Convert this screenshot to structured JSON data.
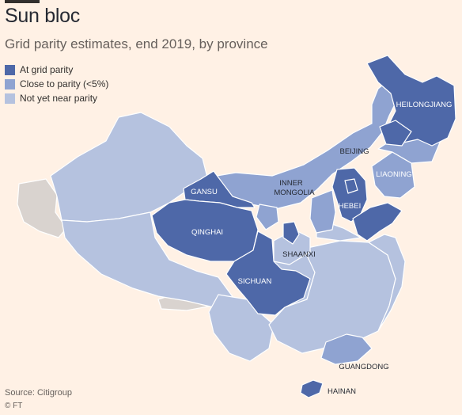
{
  "title": "Sun bloc",
  "subtitle": "Grid parity estimates, end 2019, by province",
  "colors": {
    "background": "#fff1e5",
    "at_parity": "#4e68a8",
    "close_to_parity": "#8fa3d1",
    "not_near_parity": "#b5c2df",
    "neighbour": "#d9d3cf",
    "border": "#ffffff"
  },
  "legend": [
    {
      "label": "At grid parity",
      "category": "at_parity"
    },
    {
      "label": "Close to parity (<5%)",
      "category": "close_to_parity"
    },
    {
      "label": "Not yet near parity",
      "category": "not_near_parity"
    }
  ],
  "provinces": [
    {
      "name": "HEILONGJIANG",
      "category": "at_parity"
    },
    {
      "name": "BEIJING",
      "category": "at_parity"
    },
    {
      "name": "LIAONING",
      "category": "close_to_parity"
    },
    {
      "name": "HEBEI",
      "category": "at_parity"
    },
    {
      "name": "INNER MONGOLIA",
      "category": "close_to_parity"
    },
    {
      "name": "GANSU",
      "category": "at_parity"
    },
    {
      "name": "QINGHAI",
      "category": "at_parity"
    },
    {
      "name": "SHAANXI",
      "category": "not_near_parity"
    },
    {
      "name": "SICHUAN",
      "category": "at_parity"
    },
    {
      "name": "GUANGDONG",
      "category": "close_to_parity"
    },
    {
      "name": "HAINAN",
      "category": "at_parity"
    }
  ],
  "source": "Source: Citigroup",
  "copyright": "© FT"
}
